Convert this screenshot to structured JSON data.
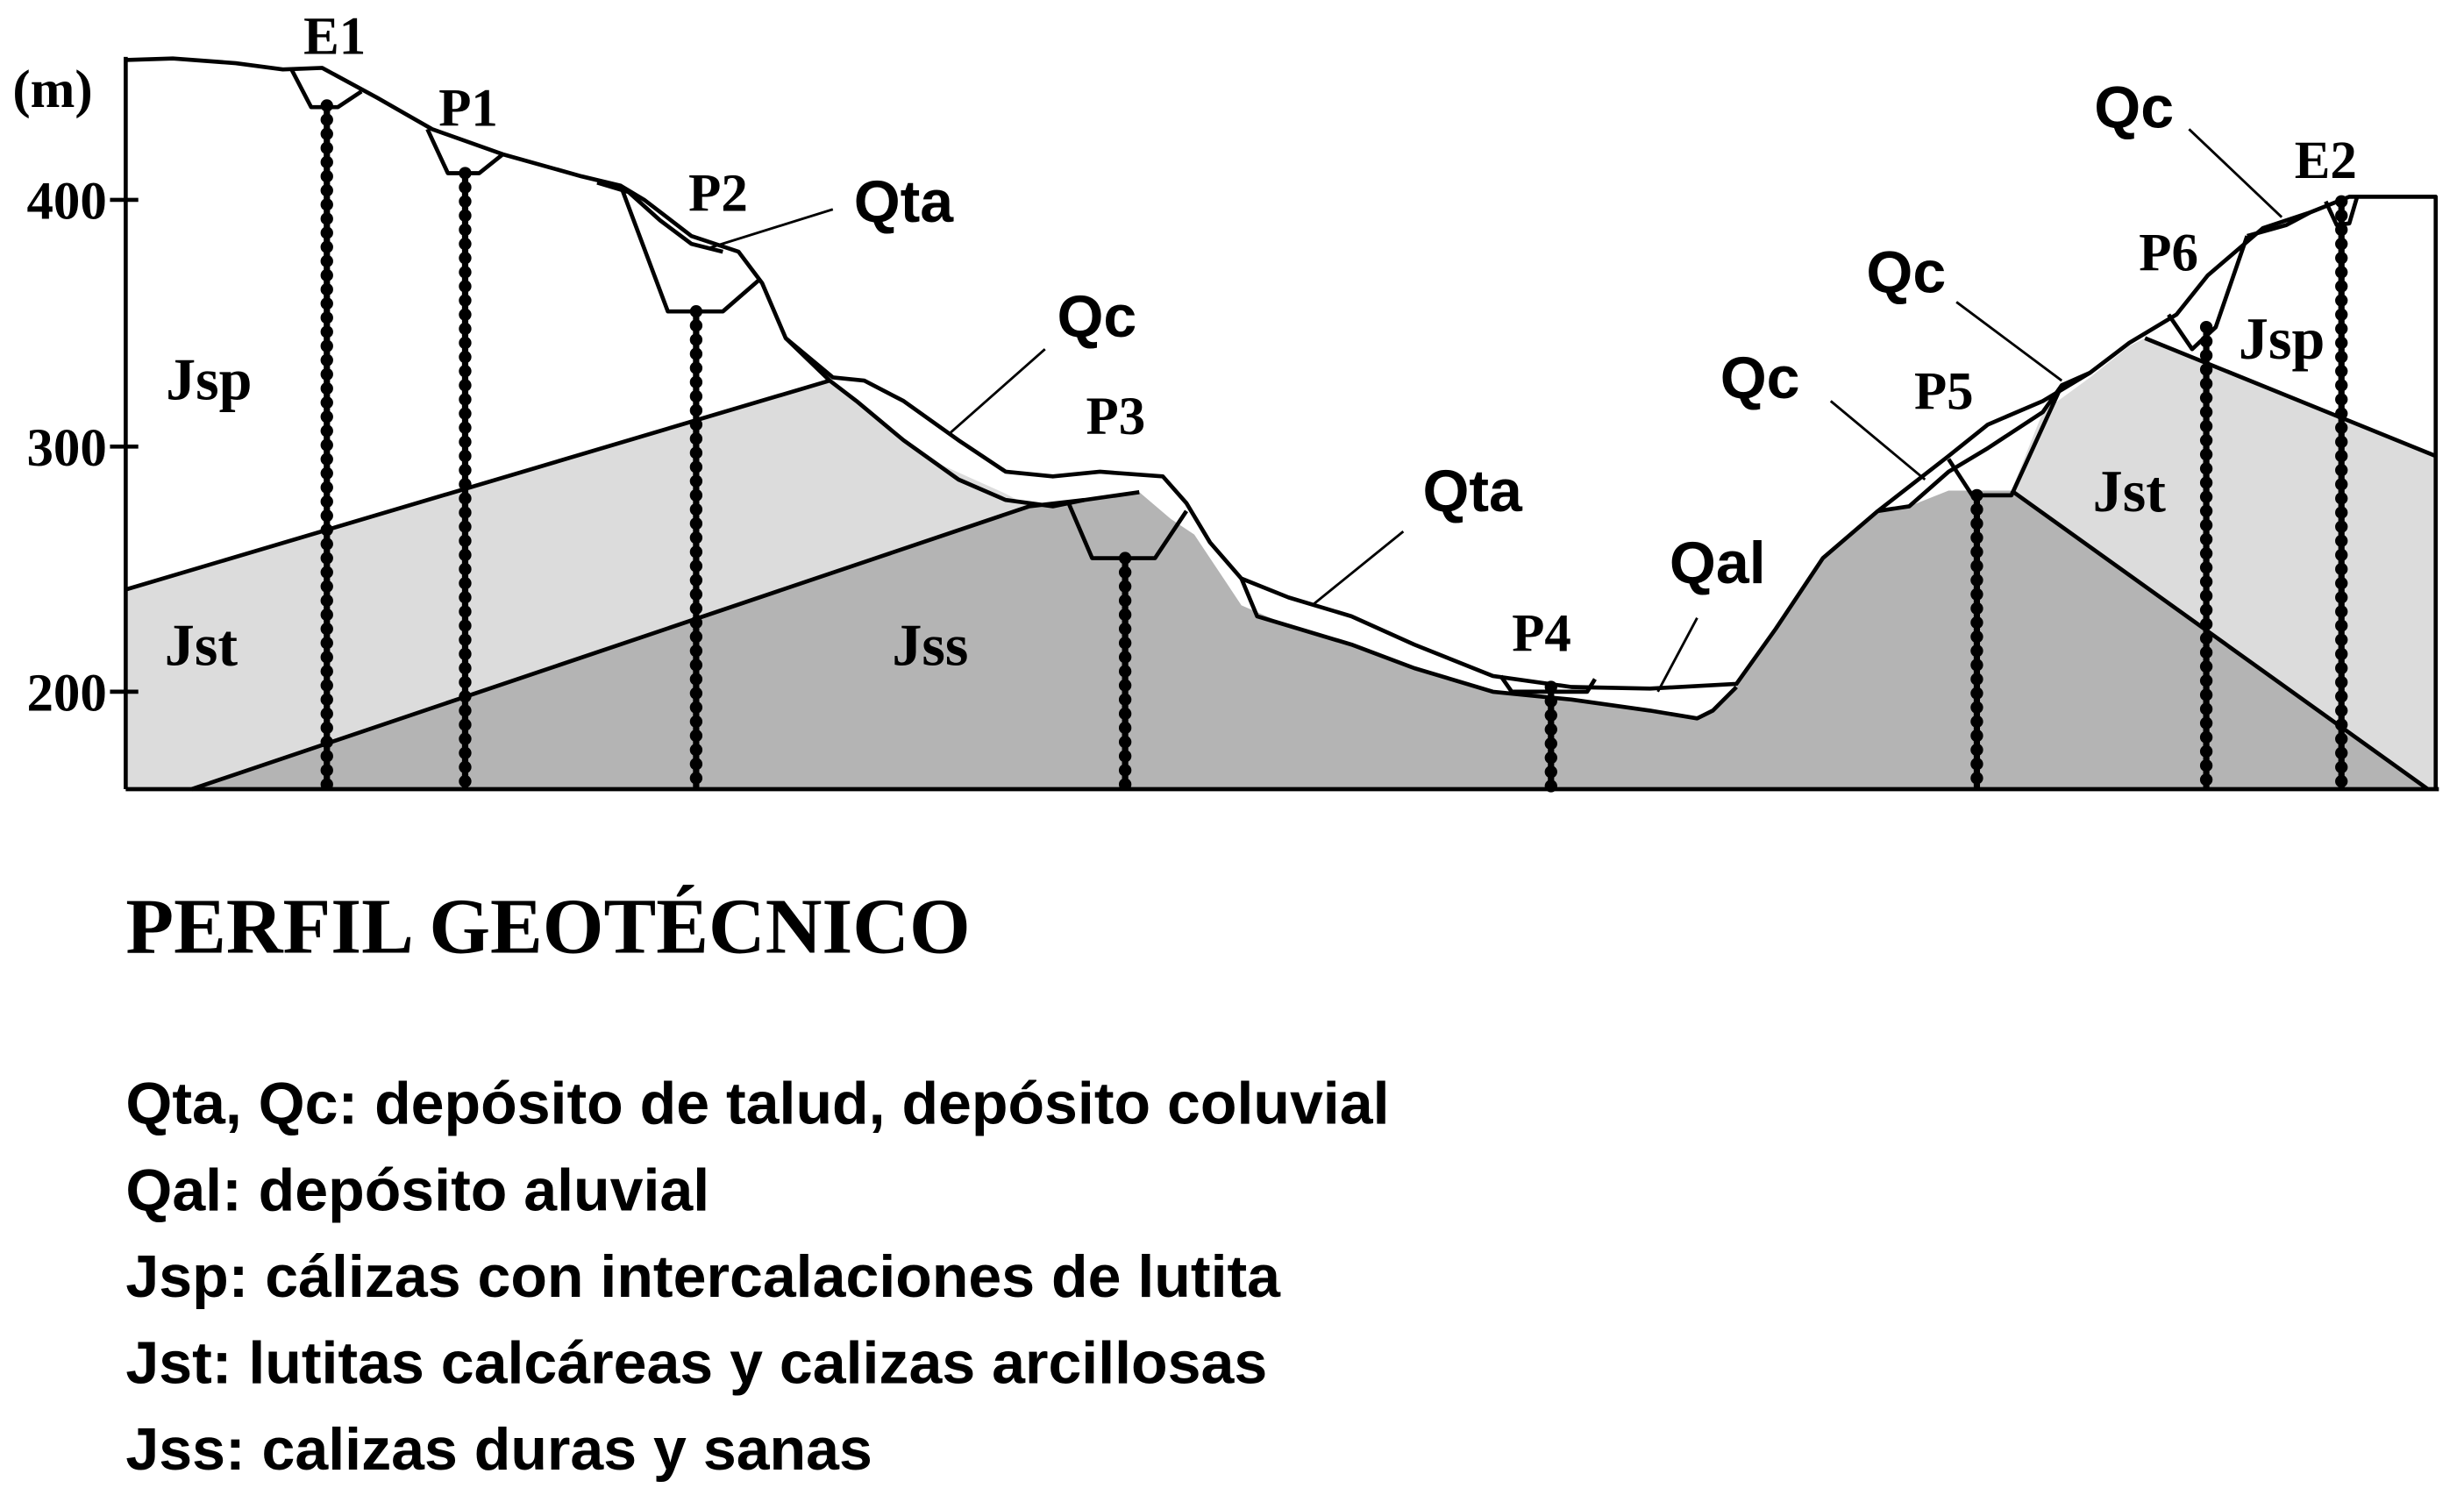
{
  "axis": {
    "unit_label": "(m)",
    "ticks": [
      {
        "value": 400,
        "label": "400"
      },
      {
        "value": 300,
        "label": "300"
      },
      {
        "value": 200,
        "label": "200"
      }
    ]
  },
  "stations": {
    "E1": "E1",
    "P1": "P1",
    "P2": "P2",
    "P3": "P3",
    "P4": "P4",
    "P5": "P5",
    "P6": "P6",
    "E2": "E2"
  },
  "units": {
    "qta_1": "Qta",
    "qta_2": "Qta",
    "qc_1": "Qc",
    "qc_2": "Qc",
    "qc_3": "Qc",
    "qc_4": "Qc",
    "qal": "Qal",
    "jsp_left": "Jsp",
    "jsp_right": "Jsp",
    "jst_left": "Jst",
    "jst_right": "Jst",
    "jss": "Jss"
  },
  "colors": {
    "jst_fill": "#dcdcdc",
    "jss_fill": "#b4b4b4",
    "jsp_fill": "#ffffff"
  },
  "title": "PERFIL GEOTÉCNICO",
  "legend": [
    "Qta, Qc: depósito de talud, depósito coluvial",
    "Qal: depósito aluvial",
    "Jsp: cálizas con intercalaciones de lutita",
    "Jst: lutitas calcáreas y calizas arcillosas",
    "Jss: calizas duras y sanas"
  ]
}
